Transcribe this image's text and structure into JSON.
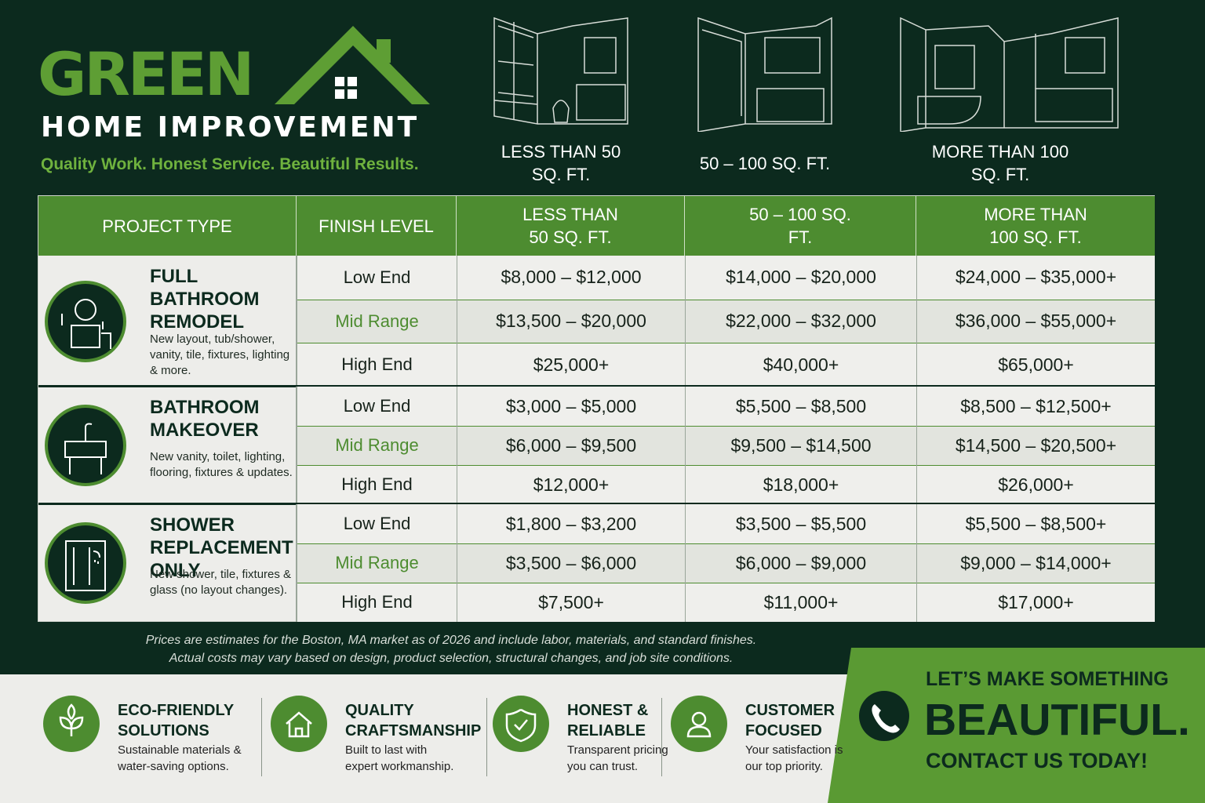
{
  "header": {
    "brand": "GREEN",
    "subtitle": "HOME IMPROVEMENT",
    "tagline": "Quality Work. Honest Service. Beautiful Results."
  },
  "sizes": [
    "LESS THAN 50 SQ. FT.",
    "50 – 100 SQ. FT.",
    "MORE THAN 100 SQ. FT."
  ],
  "table": {
    "headers": [
      "PROJECT TYPE",
      "FINISH LEVEL",
      "LESS THAN 50 SQ. FT.",
      "50 – 100 SQ. FT.",
      "MORE THAN 100 SQ. FT."
    ],
    "groups": [
      {
        "title": "FULL BATHROOM REMODEL",
        "description": "New layout, tub/shower, vanity, tile, fixtures, lighting & more.",
        "rows": [
          [
            "Low End",
            "$8,000 – $12,000",
            "$14,000 – $20,000",
            "$24,000 – $35,000+"
          ],
          [
            "Mid Range",
            "$13,500 – $20,000",
            "$22,000 – $32,000",
            "$36,000 – $55,000+"
          ],
          [
            "High End",
            "$25,000+",
            "$40,000+",
            "$65,000+"
          ]
        ]
      },
      {
        "title": "BATHROOM MAKEOVER",
        "description": "New vanity, toilet, lighting, flooring, fixtures & updates.",
        "rows": [
          [
            "Low End",
            "$3,000 – $5,000",
            "$5,500 – $8,500",
            "$8,500 – $12,500+"
          ],
          [
            "Mid Range",
            "$6,000 – $9,500",
            "$9,500 – $14,500",
            "$14,500 – $20,500+"
          ],
          [
            "High End",
            "$12,000+",
            "$18,000+",
            "$26,000+"
          ]
        ]
      },
      {
        "title": "SHOWER REPLACEMENT ONLY",
        "description": "New shower, tile, fixtures & glass (no layout changes).",
        "rows": [
          [
            "Low End",
            "$1,800 – $3,200",
            "$3,500 – $5,500",
            "$5,500 – $8,500+"
          ],
          [
            "Mid Range",
            "$3,500 – $6,000",
            "$6,000 – $9,000",
            "$9,000 – $14,000+"
          ],
          [
            "High End",
            "$7,500+",
            "$11,000+",
            "$17,000+"
          ]
        ]
      }
    ]
  },
  "footnote": [
    "Prices are estimates for the Boston, MA market as of 2026 and include labor, materials, and standard finishes.",
    "Actual costs may vary based on design, product selection, structural changes, and job site conditions."
  ],
  "features": [
    {
      "title": "ECO-FRIENDLY SOLUTIONS",
      "description": "Sustainable materials & water-saving options."
    },
    {
      "title": "QUALITY CRAFTSMANSHIP",
      "description": "Built to last with expert workmanship."
    },
    {
      "title": "HONEST & RELIABLE",
      "description": "Transparent pricing you can trust."
    },
    {
      "title": "CUSTOMER FOCUSED",
      "description": "Your satisfaction is our top priority."
    }
  ],
  "cta": {
    "line1": "LET’S MAKE SOMETHING",
    "line2": "BEAUTIFUL.",
    "line3": "CONTACT US TODAY!"
  }
}
